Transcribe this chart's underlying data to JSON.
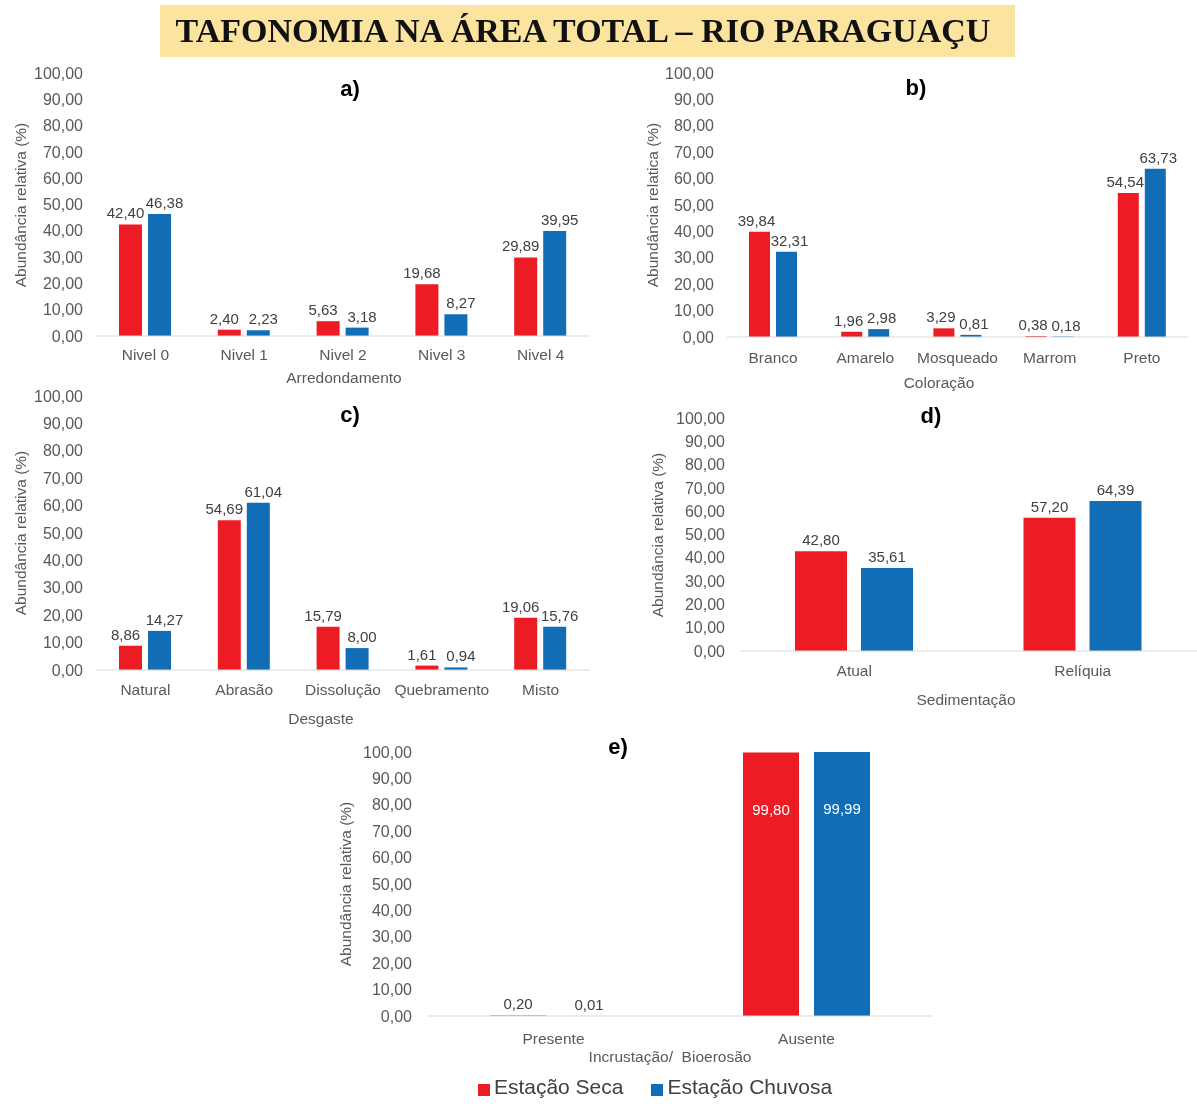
{
  "chart_data": [
    {
      "type": "bar",
      "title": "a)",
      "annotations": [
        "TAFONOMIA NA ÁREA TOTAL – RIO PARAGUAÇU"
      ],
      "xlabel": "Arredondamento",
      "ylabel": "Abundância relativa (%)",
      "categories": [
        "Nivel 0",
        "Nivel 1",
        "Nivel 2",
        "Nivel 3",
        "Nivel 4"
      ],
      "series": [
        {
          "color": "#ed1c24",
          "values": [
            42.4,
            2.4,
            5.63,
            19.68,
            29.89
          ],
          "value_labels": [
            "42,40",
            "2,40",
            "5,63",
            "19,68",
            "29,89"
          ]
        },
        {
          "color": "#116db6",
          "values": [
            46.38,
            2.23,
            3.18,
            8.27,
            39.95
          ],
          "value_labels": [
            "46,38",
            "2,23",
            "3,18",
            "8,27",
            "39,95"
          ]
        }
      ],
      "ylim": [
        0,
        100
      ],
      "yticks": [
        {
          "value": 0,
          "label": "0,00"
        },
        {
          "value": 10,
          "label": "10,00"
        },
        {
          "value": 20,
          "label": "20,00"
        },
        {
          "value": 30,
          "label": "30,00"
        },
        {
          "value": 40,
          "label": "40,00"
        },
        {
          "value": 50,
          "label": "50,00"
        },
        {
          "value": 60,
          "label": "60,00"
        },
        {
          "value": 70,
          "label": "70,00"
        },
        {
          "value": 80,
          "label": "80,00"
        },
        {
          "value": 90,
          "label": "90,00"
        },
        {
          "value": 100,
          "label": "100,00"
        }
      ]
    },
    {
      "type": "bar",
      "title": "b)",
      "xlabel": "Coloração",
      "ylabel": "Abundância relatica (%)",
      "categories": [
        "Branco",
        "Amarelo",
        "Mosqueado",
        "Marrom",
        "Preto"
      ],
      "series": [
        {
          "color": "#ed1c24",
          "values": [
            39.84,
            1.96,
            3.29,
            0.38,
            54.54
          ],
          "value_labels": [
            "39,84",
            "1,96",
            "3,29",
            "0,38",
            "54,54"
          ]
        },
        {
          "color": "#116db6",
          "values": [
            32.31,
            2.98,
            0.81,
            0.18,
            63.73
          ],
          "value_labels": [
            "32,31",
            "2,98",
            "0,81",
            "0,18",
            "63,73"
          ]
        }
      ],
      "ylim": [
        0,
        100
      ],
      "yticks": [
        {
          "value": 0,
          "label": "0,00"
        },
        {
          "value": 10,
          "label": "10,00"
        },
        {
          "value": 20,
          "label": "20,00"
        },
        {
          "value": 30,
          "label": "30,00"
        },
        {
          "value": 40,
          "label": "40,00"
        },
        {
          "value": 50,
          "label": "50,00"
        },
        {
          "value": 60,
          "label": "60,00"
        },
        {
          "value": 70,
          "label": "70,00"
        },
        {
          "value": 80,
          "label": "80,00"
        },
        {
          "value": 90,
          "label": "90,00"
        },
        {
          "value": 100,
          "label": "100,00"
        }
      ]
    },
    {
      "type": "bar",
      "title": "c)",
      "xlabel": "Desgaste",
      "ylabel": "Abundância relativa (%)",
      "categories": [
        "Natural",
        "Abrasão",
        "Dissolução",
        "Quebramento",
        "Misto"
      ],
      "series": [
        {
          "color": "#ed1c24",
          "values": [
            8.86,
            54.69,
            15.79,
            1.61,
            19.06
          ],
          "value_labels": [
            "8,86",
            "54,69",
            "15,79",
            "1,61",
            "19,06"
          ]
        },
        {
          "color": "#116db6",
          "values": [
            14.27,
            61.04,
            8.0,
            0.94,
            15.76
          ],
          "value_labels": [
            "14,27",
            "61,04",
            "8,00",
            "0,94",
            "15,76"
          ]
        }
      ],
      "ylim": [
        0,
        100
      ],
      "yticks": [
        {
          "value": 0,
          "label": "0,00"
        },
        {
          "value": 10,
          "label": "10,00"
        },
        {
          "value": 20,
          "label": "20,00"
        },
        {
          "value": 30,
          "label": "30,00"
        },
        {
          "value": 40,
          "label": "40,00"
        },
        {
          "value": 50,
          "label": "50,00"
        },
        {
          "value": 60,
          "label": "60,00"
        },
        {
          "value": 70,
          "label": "70,00"
        },
        {
          "value": 80,
          "label": "80,00"
        },
        {
          "value": 90,
          "label": "90,00"
        },
        {
          "value": 100,
          "label": "100,00"
        }
      ]
    },
    {
      "type": "bar",
      "title": "d)",
      "xlabel": "Sedimentação",
      "ylabel": "Abundância relativa (%)",
      "categories": [
        "Atual",
        "Relíquia"
      ],
      "series": [
        {
          "color": "#ed1c24",
          "values": [
            42.8,
            57.2
          ],
          "value_labels": [
            "42,80",
            "57,20"
          ]
        },
        {
          "color": "#116db6",
          "values": [
            35.61,
            64.39
          ],
          "value_labels": [
            "35,61",
            "64,39"
          ]
        }
      ],
      "ylim": [
        0,
        100
      ],
      "yticks": [
        {
          "value": 0,
          "label": "0,00"
        },
        {
          "value": 10,
          "label": "10,00"
        },
        {
          "value": 20,
          "label": "20,00"
        },
        {
          "value": 30,
          "label": "30,00"
        },
        {
          "value": 40,
          "label": "40,00"
        },
        {
          "value": 50,
          "label": "50,00"
        },
        {
          "value": 60,
          "label": "60,00"
        },
        {
          "value": 70,
          "label": "70,00"
        },
        {
          "value": 80,
          "label": "80,00"
        },
        {
          "value": 90,
          "label": "90,00"
        },
        {
          "value": 100,
          "label": "100,00"
        }
      ]
    },
    {
      "type": "bar",
      "title": "e)",
      "xlabel": "Incrustação/  Bioerosão",
      "ylabel": "Abundância relativa (%)",
      "categories": [
        "Presente",
        "Ausente"
      ],
      "series": [
        {
          "name": "Estação Seca",
          "color": "#ed1c24",
          "values": [
            0.2,
            99.8
          ],
          "value_labels": [
            "0,20",
            "99,80"
          ]
        },
        {
          "name": "Estação Chuvosa",
          "color": "#116db6",
          "values": [
            0.01,
            99.99
          ],
          "value_labels": [
            "0,01",
            "99,99"
          ]
        }
      ],
      "ylim": [
        0,
        100
      ],
      "yticks": [
        {
          "value": 0,
          "label": "0,00"
        },
        {
          "value": 10,
          "label": "10,00"
        },
        {
          "value": 20,
          "label": "20,00"
        },
        {
          "value": 30,
          "label": "30,00"
        },
        {
          "value": 40,
          "label": "40,00"
        },
        {
          "value": 50,
          "label": "50,00"
        },
        {
          "value": 60,
          "label": "60,00"
        },
        {
          "value": 70,
          "label": "70,00"
        },
        {
          "value": 80,
          "label": "80,00"
        },
        {
          "value": 90,
          "label": "90,00"
        },
        {
          "value": 100,
          "label": "100,00"
        }
      ],
      "legend": "bottom"
    }
  ]
}
